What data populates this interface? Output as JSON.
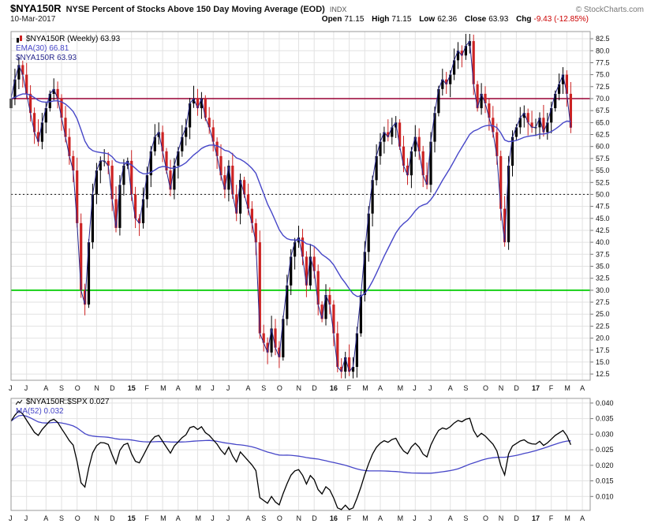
{
  "header": {
    "symbol": "$NYA150R",
    "title": "NYSE Percent of Stocks Above 150 Day Moving Average (EOD)",
    "exchange": "INDX",
    "copyright": "© StockCharts.com",
    "date": "10-Mar-2017",
    "quote": {
      "open_label": "Open",
      "open": "71.15",
      "high_label": "High",
      "high": "71.15",
      "low_label": "Low",
      "low": "62.36",
      "close_label": "Close",
      "close": "63.93",
      "chg_label": "Chg",
      "chg": "-9.43 (-12.85%)"
    }
  },
  "main_legend": {
    "line1": "$NYA150R (Weekly) 63.93",
    "line2": "EMA(30) 66.81",
    "line3": "$NYA150R 63.93"
  },
  "lower_legend": {
    "line1": "$NYA150R:$SPX 0.027",
    "line2": "MA(52) 0.032"
  },
  "chart_data": {
    "type": "candlestick",
    "timeframe": "weekly",
    "x_start": "Jun-2014",
    "x_end": "Mar-2017",
    "legend_position": "top-left",
    "grid": true,
    "months": [
      {
        "l": "J",
        "w": 0
      },
      {
        "l": "J",
        "w": 4
      },
      {
        "l": "A",
        "w": 9
      },
      {
        "l": "S",
        "w": 13
      },
      {
        "l": "O",
        "w": 17
      },
      {
        "l": "N",
        "w": 22
      },
      {
        "l": "D",
        "w": 26
      },
      {
        "l": "15",
        "w": 31,
        "y": true
      },
      {
        "l": "F",
        "w": 35
      },
      {
        "l": "M",
        "w": 39
      },
      {
        "l": "A",
        "w": 43
      },
      {
        "l": "M",
        "w": 48
      },
      {
        "l": "J",
        "w": 52
      },
      {
        "l": "J",
        "w": 56
      },
      {
        "l": "A",
        "w": 61
      },
      {
        "l": "S",
        "w": 65
      },
      {
        "l": "O",
        "w": 69
      },
      {
        "l": "N",
        "w": 74
      },
      {
        "l": "D",
        "w": 78
      },
      {
        "l": "16",
        "w": 83,
        "y": true
      },
      {
        "l": "F",
        "w": 87
      },
      {
        "l": "M",
        "w": 91
      },
      {
        "l": "A",
        "w": 95
      },
      {
        "l": "M",
        "w": 100
      },
      {
        "l": "J",
        "w": 104
      },
      {
        "l": "J",
        "w": 108
      },
      {
        "l": "A",
        "w": 113
      },
      {
        "l": "S",
        "w": 117
      },
      {
        "l": "O",
        "w": 122
      },
      {
        "l": "N",
        "w": 126
      },
      {
        "l": "D",
        "w": 130
      },
      {
        "l": "17",
        "w": 135,
        "y": true
      },
      {
        "l": "F",
        "w": 139
      },
      {
        "l": "M",
        "w": 143
      },
      {
        "l": "A",
        "w": 147
      }
    ],
    "main": {
      "title": "$NYA150R (Weekly)",
      "last_close": 63.93,
      "ema30_last": 66.81,
      "ylim": [
        12.5,
        82.5
      ],
      "ytick_step": 2.5,
      "yticks": [
        "82.5",
        "80.0",
        "77.5",
        "75.0",
        "72.5",
        "70.0",
        "67.5",
        "65.0",
        "62.5",
        "60.0",
        "57.5",
        "55.0",
        "52.5",
        "50.0",
        "47.5",
        "45.0",
        "42.5",
        "40.0",
        "37.5",
        "35.0",
        "32.5",
        "30.0",
        "27.5",
        "25.0",
        "22.5",
        "20.0",
        "17.5",
        "15.0",
        "12.5"
      ],
      "hlines": [
        {
          "v": 70.0,
          "color": "#990033",
          "style": "solid",
          "width": 1.6
        },
        {
          "v": 50.0,
          "color": "#111111",
          "style": "dotted",
          "width": 1
        },
        {
          "v": 30.0,
          "color": "#00cc00",
          "style": "solid",
          "width": 1.8
        }
      ],
      "overlays": [
        "EMA(30)",
        "close-line"
      ],
      "close": [
        70,
        74,
        77,
        75,
        71,
        67,
        63,
        61,
        65,
        68,
        71,
        72,
        70,
        66,
        62,
        58,
        55,
        44,
        30,
        27,
        40,
        50,
        55,
        57,
        57,
        56,
        49,
        43,
        52,
        56,
        57,
        50,
        45,
        44,
        49,
        54,
        59,
        62,
        63,
        59,
        55,
        51,
        56,
        59,
        62,
        64,
        69,
        70,
        68,
        70,
        66,
        64,
        61,
        58,
        54,
        51,
        56,
        50,
        46,
        53,
        50,
        47,
        44,
        40,
        21,
        19,
        17,
        22,
        18,
        16,
        24,
        31,
        37,
        40,
        41,
        37,
        31,
        37,
        34,
        27,
        24,
        29,
        27,
        21,
        14,
        13,
        16,
        13,
        14,
        21,
        29,
        38,
        46,
        53,
        58,
        61,
        63,
        62,
        64,
        65,
        60,
        56,
        54,
        59,
        62,
        59,
        54,
        52,
        61,
        67,
        72,
        74,
        73,
        75,
        78,
        80,
        79,
        81,
        82,
        73,
        68,
        71,
        69,
        66,
        63,
        58,
        47,
        40,
        56,
        62,
        64,
        66,
        67,
        65,
        64,
        64,
        66,
        63,
        65,
        68,
        71,
        73,
        75,
        71,
        63.93
      ]
    },
    "lower": {
      "title": "$NYA150R:$SPX",
      "last_ratio": 0.027,
      "ma52_last": 0.032,
      "ylim": [
        0.01,
        0.04
      ],
      "ytick_step": 0.005,
      "yticks": [
        "0.040",
        "0.035",
        "0.030",
        "0.025",
        "0.020",
        "0.015",
        "0.010"
      ],
      "ratio": [
        0.0342,
        0.0361,
        0.0375,
        0.0365,
        0.0345,
        0.0326,
        0.0306,
        0.0296,
        0.0315,
        0.0329,
        0.0343,
        0.0348,
        0.0338,
        0.0318,
        0.0299,
        0.0279,
        0.0265,
        0.0212,
        0.0144,
        0.013,
        0.0192,
        0.024,
        0.0263,
        0.0273,
        0.0272,
        0.0267,
        0.0234,
        0.0205,
        0.0248,
        0.0266,
        0.0271,
        0.0237,
        0.0213,
        0.0208,
        0.0231,
        0.0255,
        0.0278,
        0.0292,
        0.0296,
        0.0277,
        0.0258,
        0.0239,
        0.0262,
        0.0275,
        0.0289,
        0.0298,
        0.0321,
        0.0325,
        0.0315,
        0.0324,
        0.0305,
        0.0296,
        0.0282,
        0.0268,
        0.0249,
        0.0235,
        0.0258,
        0.023,
        0.0211,
        0.0243,
        0.0229,
        0.0215,
        0.0201,
        0.0183,
        0.0096,
        0.0087,
        0.0078,
        0.01,
        0.0082,
        0.0073,
        0.0109,
        0.0141,
        0.0168,
        0.0182,
        0.0186,
        0.0168,
        0.014,
        0.0167,
        0.0154,
        0.0122,
        0.0108,
        0.0131,
        0.0121,
        0.0095,
        0.0063,
        0.0058,
        0.0072,
        0.0058,
        0.0063,
        0.0094,
        0.013,
        0.017,
        0.0205,
        0.0236,
        0.0258,
        0.0271,
        0.0279,
        0.0274,
        0.0283,
        0.0287,
        0.0264,
        0.0246,
        0.0237,
        0.0259,
        0.0271,
        0.0258,
        0.0236,
        0.0227,
        0.0265,
        0.0291,
        0.0312,
        0.032,
        0.0316,
        0.0324,
        0.0336,
        0.0344,
        0.034,
        0.0348,
        0.0351,
        0.0312,
        0.0291,
        0.0303,
        0.0294,
        0.0281,
        0.0268,
        0.0246,
        0.0199,
        0.0169,
        0.0237,
        0.0262,
        0.027,
        0.0278,
        0.0282,
        0.0273,
        0.0269,
        0.0268,
        0.0277,
        0.0264,
        0.0272,
        0.0284,
        0.0296,
        0.0304,
        0.0312,
        0.0295,
        0.0266
      ]
    },
    "colors": {
      "bar_up": "#000000",
      "bar_down": "#cc2222",
      "ema": "#4646c8",
      "close_line": "#26268c",
      "ratio": "#000000",
      "ma52": "#4646c8",
      "grid": "#e2e2e2",
      "border": "#999999",
      "chg_negative": "#cc0000"
    }
  }
}
